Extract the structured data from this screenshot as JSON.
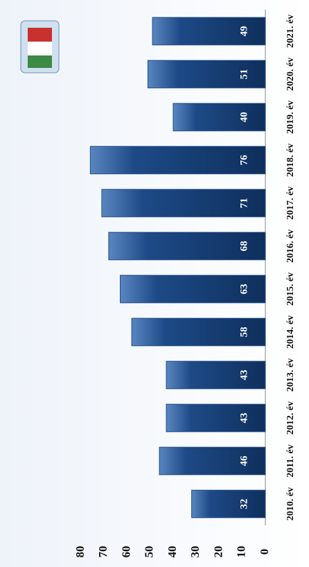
{
  "chart_data": {
    "type": "bar",
    "categories": [
      "2010. év",
      "2011. év",
      "2012. év",
      "2013. év",
      "2014. év",
      "2015. év",
      "2016. év",
      "2017. év",
      "2018. év",
      "2019. év",
      "2020. év",
      "2021. év"
    ],
    "values": [
      32,
      46,
      43,
      43,
      58,
      63,
      68,
      71,
      76,
      40,
      51,
      49
    ],
    "color": "#1d4a86",
    "ylim": [
      0,
      80
    ],
    "yticks": [
      0,
      10,
      20,
      30,
      40,
      50,
      60,
      70,
      80
    ]
  }
}
